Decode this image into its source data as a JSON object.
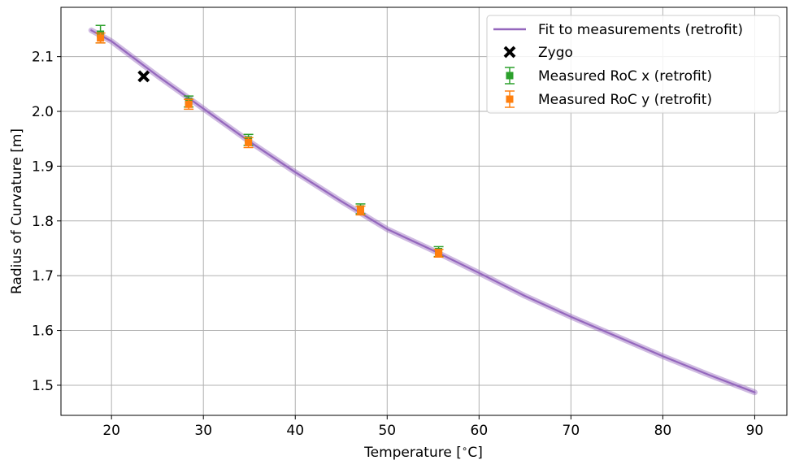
{
  "chart_data": {
    "type": "scatter",
    "title": "",
    "xlabel": "Temperature [$^\\circ$C]",
    "xlabel_parts": {
      "prefix": "Temperature [",
      "sup": "∘",
      "suffix": "C]"
    },
    "ylabel": "Radius of Curvature [m]",
    "xlim": [
      14.5,
      93.5
    ],
    "ylim": [
      1.445,
      2.19
    ],
    "xticks": [
      20,
      30,
      40,
      50,
      60,
      70,
      80,
      90
    ],
    "yticks": [
      1.5,
      1.6,
      1.7,
      1.8,
      1.9,
      2.0,
      2.1
    ],
    "ytick_labels": [
      "1.5",
      "1.6",
      "1.7",
      "1.8",
      "1.9",
      "2.0",
      "2.1"
    ],
    "grid": true,
    "legend_position": "top-right",
    "series": [
      {
        "name": "Fit to measurements (retrofit)",
        "kind": "line",
        "color": "#9467bd",
        "x": [
          17.8,
          20,
          25,
          30,
          35,
          40,
          45,
          50,
          55,
          60,
          65,
          70,
          75,
          80,
          85,
          90
        ],
        "y": [
          2.148,
          2.128,
          2.065,
          2.005,
          1.945,
          1.889,
          1.836,
          1.785,
          1.746,
          1.705,
          1.663,
          1.625,
          1.589,
          1.553,
          1.519,
          1.487
        ]
      },
      {
        "name": "Zygo",
        "kind": "marker-x",
        "color": "#000000",
        "x": [
          23.5
        ],
        "y": [
          2.064
        ]
      },
      {
        "name": "Measured RoC x (retrofit)",
        "kind": "errorbar",
        "color": "#2ca02c",
        "x": [
          18.8,
          28.4,
          34.9,
          47.1,
          55.6
        ],
        "y": [
          2.141,
          2.018,
          1.948,
          1.822,
          1.744
        ],
        "yerr": [
          0.016,
          0.01,
          0.01,
          0.009,
          0.009
        ]
      },
      {
        "name": "Measured RoC y (retrofit)",
        "kind": "errorbar",
        "color": "#ff7f0e",
        "x": [
          18.8,
          28.4,
          34.9,
          47.1,
          55.6
        ],
        "y": [
          2.134,
          2.013,
          1.943,
          1.819,
          1.741
        ],
        "yerr": [
          0.009,
          0.009,
          0.009,
          0.008,
          0.007
        ]
      }
    ]
  }
}
